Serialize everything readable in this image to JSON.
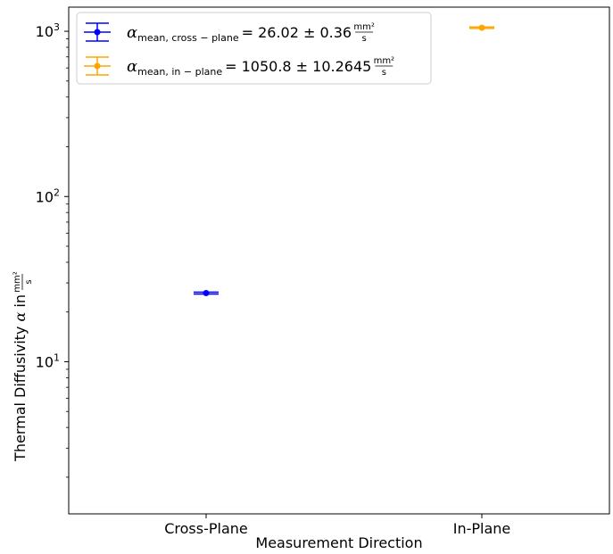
{
  "chart_data": {
    "type": "scatter",
    "categories": [
      "Cross-Plane",
      "In-Plane"
    ],
    "x_axis_label": "Measurement Direction",
    "y_axis_label": {
      "text": "Thermal Diffusivity",
      "symbol": "α",
      "in_word": "in",
      "unit_numerator": "mm²",
      "unit_denominator": "s"
    },
    "y_scale": "log",
    "y_ticks": [
      {
        "base": "10",
        "exp": "1",
        "value": 10
      },
      {
        "base": "10",
        "exp": "2",
        "value": 100
      },
      {
        "base": "10",
        "exp": "3",
        "value": 1000
      }
    ],
    "ylim": [
      1.2,
      1400
    ],
    "grid": false,
    "legend_position": "top-left",
    "series": [
      {
        "category": "Cross-Plane",
        "value": 26.02,
        "error": 0.36,
        "color": "#0000ff",
        "legend": {
          "symbol": "α",
          "subscript": "mean, cross − plane",
          "text": "= 26.02 ± 0.36",
          "unit_numerator": "mm²",
          "unit_denominator": "s"
        }
      },
      {
        "category": "In-Plane",
        "value": 1050.8,
        "error": 10.2645,
        "color": "#ffa500",
        "legend": {
          "symbol": "α",
          "subscript": "mean, in − plane",
          "text": "= 1050.8 ± 10.2645",
          "unit_numerator": "mm²",
          "unit_denominator": "s"
        }
      }
    ]
  }
}
